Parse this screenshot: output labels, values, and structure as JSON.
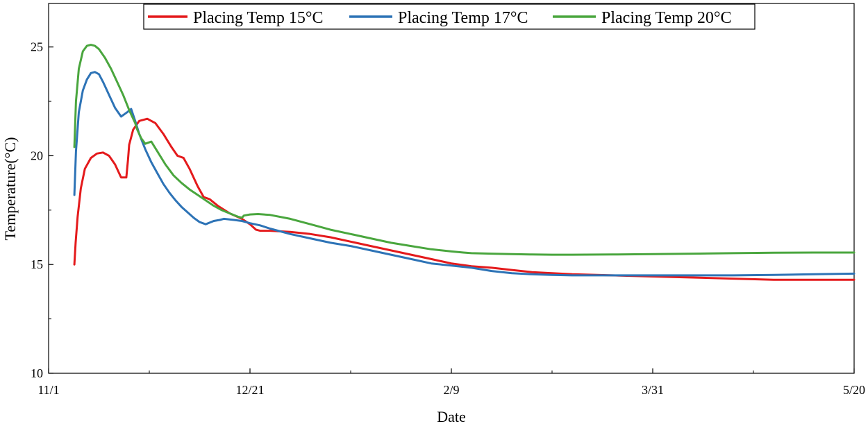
{
  "chart_data": {
    "type": "line",
    "title": "",
    "xlabel": "Date",
    "ylabel": "Temperature(°C)",
    "ylim": [
      10,
      27
    ],
    "xlim": [
      0,
      200
    ],
    "y_ticks": [
      10,
      15,
      20,
      25
    ],
    "x_tick_labels": [
      {
        "day": 0,
        "label": "11/1"
      },
      {
        "day": 50,
        "label": "12/21"
      },
      {
        "day": 100,
        "label": "2/9"
      },
      {
        "day": 150,
        "label": "3/31"
      },
      {
        "day": 200,
        "label": "5/20"
      }
    ],
    "x_minor_tick_days": [
      25,
      75,
      125,
      175
    ],
    "legend_position": "top",
    "series": [
      {
        "name": "Placing Temp 15°C",
        "color": "#e41a1c",
        "x": [
          6.4,
          6.7,
          7.2,
          8,
          9,
          10.5,
          12,
          13.5,
          15,
          16.5,
          18,
          19.3,
          19.7,
          20,
          21,
          22.5,
          24.5,
          26.5,
          28.5,
          30.5,
          32,
          33.5,
          35,
          37,
          38.5,
          40,
          42,
          45,
          48,
          50,
          51.5,
          52.5,
          55,
          60,
          65,
          70,
          75,
          80,
          85,
          90,
          95,
          100,
          105,
          110,
          115,
          120,
          125,
          130,
          140,
          150,
          160,
          170,
          180,
          190,
          200
        ],
        "values": [
          15.0,
          16.0,
          17.2,
          18.5,
          19.4,
          19.9,
          20.1,
          20.15,
          20.0,
          19.6,
          19.0,
          19.0,
          19.8,
          20.5,
          21.2,
          21.6,
          21.7,
          21.5,
          21.0,
          20.4,
          20.0,
          19.9,
          19.4,
          18.6,
          18.1,
          18.0,
          17.7,
          17.35,
          17.1,
          16.85,
          16.6,
          16.55,
          16.55,
          16.5,
          16.4,
          16.25,
          16.05,
          15.85,
          15.65,
          15.45,
          15.25,
          15.05,
          14.92,
          14.85,
          14.75,
          14.65,
          14.6,
          14.55,
          14.5,
          14.45,
          14.4,
          14.35,
          14.3,
          14.3,
          14.3
        ]
      },
      {
        "name": "Placing Temp 17°C",
        "color": "#2d73b6",
        "x": [
          6.4,
          6.8,
          7.5,
          8.5,
          9.5,
          10.5,
          11.5,
          12.5,
          13.5,
          15,
          16.5,
          18,
          19.5,
          20.5,
          21.5,
          22.5,
          24,
          25.5,
          27,
          28.5,
          30,
          31.5,
          33,
          34.5,
          36,
          37.5,
          39,
          41,
          42.5,
          43.5,
          44.5,
          46,
          48,
          50,
          52.5,
          55,
          60,
          65,
          70,
          75,
          80,
          85,
          90,
          95,
          100,
          105,
          110,
          115,
          120,
          125,
          130,
          140,
          150,
          160,
          170,
          180,
          190,
          200
        ],
        "values": [
          18.2,
          20.2,
          22.0,
          23.0,
          23.5,
          23.8,
          23.85,
          23.75,
          23.4,
          22.8,
          22.2,
          21.8,
          22.0,
          22.15,
          21.6,
          21.0,
          20.3,
          19.7,
          19.2,
          18.7,
          18.3,
          17.95,
          17.65,
          17.4,
          17.15,
          16.95,
          16.85,
          17.0,
          17.05,
          17.1,
          17.08,
          17.05,
          17.0,
          16.9,
          16.8,
          16.65,
          16.4,
          16.2,
          16.0,
          15.85,
          15.65,
          15.45,
          15.25,
          15.05,
          14.95,
          14.85,
          14.7,
          14.6,
          14.55,
          14.52,
          14.5,
          14.5,
          14.5,
          14.5,
          14.5,
          14.52,
          14.55,
          14.58
        ]
      },
      {
        "name": "Placing Temp 20°C",
        "color": "#4aa63e",
        "x": [
          6.4,
          6.8,
          7.5,
          8.5,
          9.5,
          10.5,
          11.5,
          12.5,
          14,
          15.5,
          17,
          18.5,
          20,
          21.5,
          22,
          23,
          24,
          25.5,
          27,
          29,
          31,
          33,
          35,
          37,
          39,
          41,
          43,
          45,
          47,
          48,
          48.5,
          50,
          52,
          55,
          60,
          65,
          70,
          75,
          80,
          85,
          90,
          95,
          100,
          103,
          105,
          110,
          115,
          120,
          125,
          130,
          140,
          150,
          160,
          170,
          180,
          190,
          200
        ],
        "values": [
          20.4,
          22.5,
          24.0,
          24.8,
          25.05,
          25.1,
          25.05,
          24.9,
          24.5,
          24.0,
          23.4,
          22.8,
          22.1,
          21.5,
          21.2,
          20.8,
          20.55,
          20.65,
          20.2,
          19.6,
          19.1,
          18.75,
          18.45,
          18.2,
          17.95,
          17.7,
          17.5,
          17.35,
          17.2,
          17.15,
          17.25,
          17.3,
          17.32,
          17.28,
          17.1,
          16.85,
          16.6,
          16.4,
          16.2,
          16.0,
          15.85,
          15.7,
          15.6,
          15.55,
          15.52,
          15.5,
          15.48,
          15.46,
          15.45,
          15.45,
          15.46,
          15.48,
          15.5,
          15.52,
          15.54,
          15.55,
          15.55
        ]
      }
    ]
  }
}
